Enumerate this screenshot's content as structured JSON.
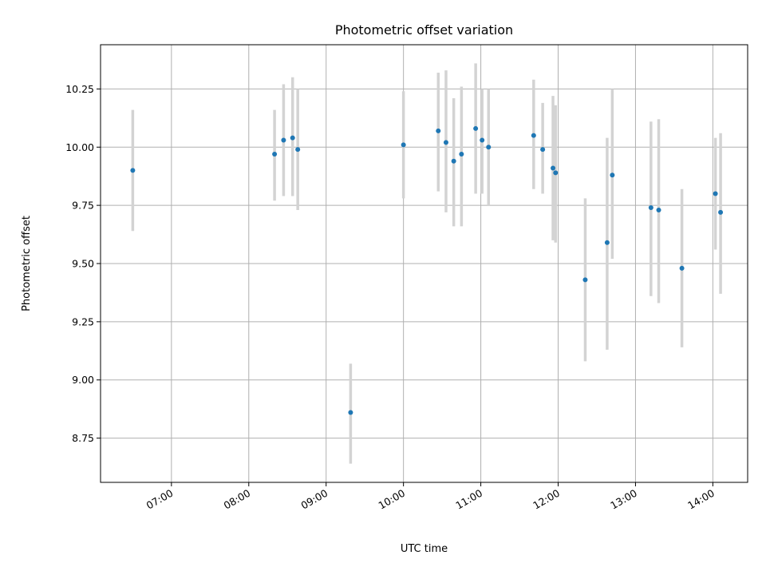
{
  "chart_data": {
    "type": "scatter",
    "title": "Photometric offset variation",
    "xlabel": "UTC time",
    "ylabel": "Photometric offset",
    "xlim": [
      "06:05",
      "14:27"
    ],
    "ylim": [
      8.56,
      10.44
    ],
    "x_ticks": [
      "07:00",
      "08:00",
      "09:00",
      "10:00",
      "11:00",
      "12:00",
      "13:00",
      "14:00"
    ],
    "y_ticks": [
      "8.75",
      "9.00",
      "9.25",
      "9.50",
      "9.75",
      "10.00",
      "10.25"
    ],
    "grid": true,
    "colors": {
      "point": "#1f77b4",
      "errorbar": "#d3d3d3",
      "grid": "#b0b0b0"
    },
    "series": [
      {
        "points": [
          {
            "x": "06:30",
            "y": 9.9,
            "ylow": 9.64,
            "yhigh": 10.16
          },
          {
            "x": "08:20",
            "y": 9.97,
            "ylow": 9.77,
            "yhigh": 10.16
          },
          {
            "x": "08:27",
            "y": 10.03,
            "ylow": 9.79,
            "yhigh": 10.27
          },
          {
            "x": "08:34",
            "y": 10.04,
            "ylow": 9.79,
            "yhigh": 10.3
          },
          {
            "x": "08:38",
            "y": 9.99,
            "ylow": 9.73,
            "yhigh": 10.25
          },
          {
            "x": "09:19",
            "y": 8.86,
            "ylow": 8.64,
            "yhigh": 9.07
          },
          {
            "x": "10:00",
            "y": 10.01,
            "ylow": 9.78,
            "yhigh": 10.24
          },
          {
            "x": "10:27",
            "y": 10.07,
            "ylow": 9.81,
            "yhigh": 10.32
          },
          {
            "x": "10:33",
            "y": 10.02,
            "ylow": 9.72,
            "yhigh": 10.33
          },
          {
            "x": "10:39",
            "y": 9.94,
            "ylow": 9.66,
            "yhigh": 10.21
          },
          {
            "x": "10:45",
            "y": 9.97,
            "ylow": 9.66,
            "yhigh": 10.26
          },
          {
            "x": "10:56",
            "y": 10.08,
            "ylow": 9.8,
            "yhigh": 10.36
          },
          {
            "x": "11:01",
            "y": 10.03,
            "ylow": 9.8,
            "yhigh": 10.25
          },
          {
            "x": "11:06",
            "y": 10.0,
            "ylow": 9.75,
            "yhigh": 10.25
          },
          {
            "x": "11:41",
            "y": 10.05,
            "ylow": 9.82,
            "yhigh": 10.29
          },
          {
            "x": "11:48",
            "y": 9.99,
            "ylow": 9.8,
            "yhigh": 10.19
          },
          {
            "x": "11:56",
            "y": 9.91,
            "ylow": 9.6,
            "yhigh": 10.22
          },
          {
            "x": "11:58",
            "y": 9.89,
            "ylow": 9.59,
            "yhigh": 10.18
          },
          {
            "x": "12:21",
            "y": 9.43,
            "ylow": 9.08,
            "yhigh": 9.78
          },
          {
            "x": "12:38",
            "y": 9.59,
            "ylow": 9.13,
            "yhigh": 10.04
          },
          {
            "x": "12:42",
            "y": 9.88,
            "ylow": 9.52,
            "yhigh": 10.25
          },
          {
            "x": "13:12",
            "y": 9.74,
            "ylow": 9.36,
            "yhigh": 10.11
          },
          {
            "x": "13:18",
            "y": 9.73,
            "ylow": 9.33,
            "yhigh": 10.12
          },
          {
            "x": "13:36",
            "y": 9.48,
            "ylow": 9.14,
            "yhigh": 9.82
          },
          {
            "x": "14:02",
            "y": 9.8,
            "ylow": 9.56,
            "yhigh": 10.04
          },
          {
            "x": "14:06",
            "y": 9.72,
            "ylow": 9.37,
            "yhigh": 10.06
          }
        ]
      }
    ]
  }
}
